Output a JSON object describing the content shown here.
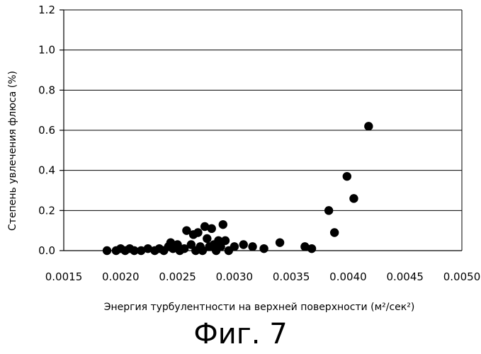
{
  "chart_data": {
    "type": "scatter",
    "title": "",
    "xlabel": "Энергия турбулентности на верхней поверхности (м²/сек²)",
    "ylabel": "Степень увлечения флюса (%)",
    "xlim": [
      0.0015,
      0.005
    ],
    "ylim": [
      0.0,
      1.2
    ],
    "x_ticks": [
      "0.0015",
      "0.0020",
      "0.0025",
      "0.0030",
      "0.0035",
      "0.0040",
      "0.0045",
      "0.0050"
    ],
    "y_ticks": [
      "0.0",
      "0.2",
      "0.4",
      "0.6",
      "0.8",
      "1.0",
      "1.2"
    ],
    "grid": "horizontal",
    "legend": "none",
    "marker_color": "#000000",
    "series": [
      {
        "points": [
          [
            0.00188,
            0.0
          ],
          [
            0.00196,
            0.0
          ],
          [
            0.002,
            0.01
          ],
          [
            0.00204,
            0.0
          ],
          [
            0.00208,
            0.01
          ],
          [
            0.00212,
            0.0
          ],
          [
            0.00218,
            0.0
          ],
          [
            0.00224,
            0.01
          ],
          [
            0.0023,
            0.0
          ],
          [
            0.00234,
            0.01
          ],
          [
            0.00238,
            0.0
          ],
          [
            0.00242,
            0.02
          ],
          [
            0.00244,
            0.04
          ],
          [
            0.00246,
            0.01
          ],
          [
            0.0025,
            0.03
          ],
          [
            0.00252,
            0.0
          ],
          [
            0.00256,
            0.01
          ],
          [
            0.00258,
            0.1
          ],
          [
            0.00262,
            0.03
          ],
          [
            0.00264,
            0.08
          ],
          [
            0.00266,
            0.0
          ],
          [
            0.00268,
            0.09
          ],
          [
            0.0027,
            0.02
          ],
          [
            0.00272,
            0.0
          ],
          [
            0.00274,
            0.12
          ],
          [
            0.00276,
            0.06
          ],
          [
            0.00278,
            0.02
          ],
          [
            0.0028,
            0.11
          ],
          [
            0.00282,
            0.03
          ],
          [
            0.00284,
            0.0
          ],
          [
            0.00286,
            0.05
          ],
          [
            0.00288,
            0.02
          ],
          [
            0.0029,
            0.13
          ],
          [
            0.00292,
            0.05
          ],
          [
            0.00295,
            0.0
          ],
          [
            0.003,
            0.02
          ],
          [
            0.00308,
            0.03
          ],
          [
            0.00316,
            0.02
          ],
          [
            0.00326,
            0.01
          ],
          [
            0.0034,
            0.04
          ],
          [
            0.00362,
            0.02
          ],
          [
            0.00368,
            0.01
          ],
          [
            0.00383,
            0.2
          ],
          [
            0.00388,
            0.09
          ],
          [
            0.00399,
            0.37
          ],
          [
            0.00405,
            0.26
          ],
          [
            0.00418,
            0.62
          ]
        ]
      }
    ]
  },
  "caption": "Фиг. 7"
}
